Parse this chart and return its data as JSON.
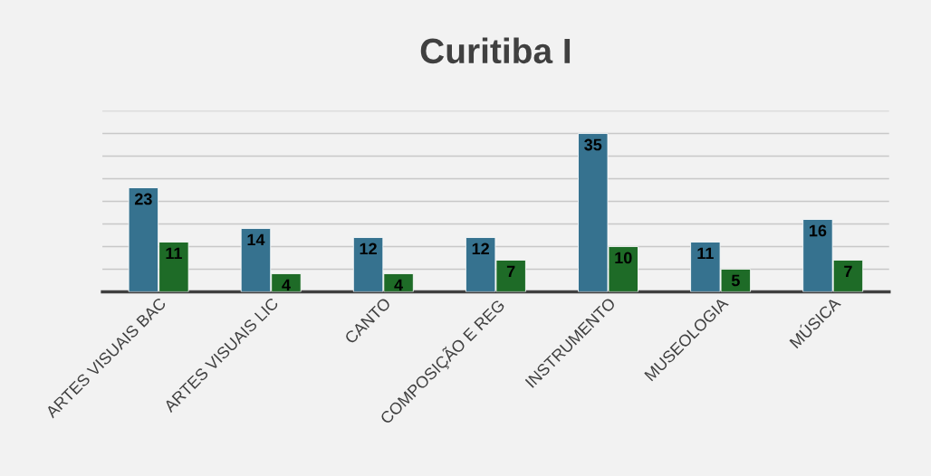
{
  "chart_data": {
    "type": "bar",
    "title": "Curitiba I",
    "categories": [
      "ARTES VISUAIS BAC",
      "ARTES VISUAIS LIC",
      "CANTO",
      "COMPOSIÇÃO E REG",
      "INSTRUMENTO",
      "MUSEOLOGIA",
      "MÚSICA"
    ],
    "series": [
      {
        "color": "#36728f",
        "values": [
          23,
          14,
          12,
          12,
          35,
          11,
          16
        ]
      },
      {
        "color": "#1e6b27",
        "values": [
          11,
          4,
          4,
          7,
          10,
          5,
          7
        ]
      }
    ],
    "ylim": [
      0,
      40
    ],
    "yticks": [
      {
        "value": 0,
        "label": null
      },
      {
        "value": 5,
        "label": null
      },
      {
        "value": 10,
        "label": null
      },
      {
        "value": 15,
        "label": null
      },
      {
        "value": 20,
        "label": null
      },
      {
        "value": 25,
        "label": null
      },
      {
        "value": 30,
        "label": null
      },
      {
        "value": 35,
        "label": null
      },
      {
        "value": 40,
        "label": null
      }
    ],
    "tick_labels": "x",
    "grid": "y",
    "data_labels": true
  }
}
